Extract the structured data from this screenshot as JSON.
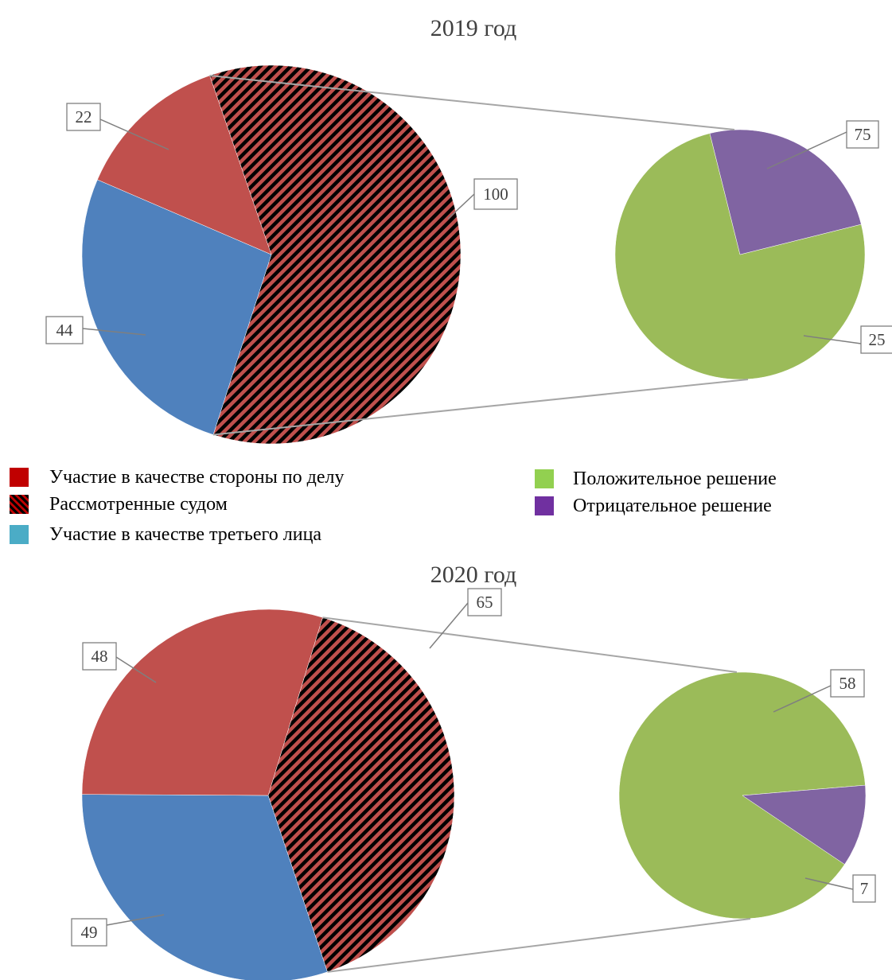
{
  "chart_data": [
    {
      "type": "bar-of-pie",
      "title": "2019 год",
      "main_pie": [
        {
          "name": "Рассмотренные судом",
          "value": 100,
          "label": "100"
        },
        {
          "name": "Участие в качестве третьего лица",
          "value": 44,
          "label": "44"
        },
        {
          "name": "Участие в качестве стороны по делу",
          "value": 22,
          "label": "22"
        }
      ],
      "secondary_pie": [
        {
          "name": "Положительное решение",
          "value": 75,
          "label": "75"
        },
        {
          "name": "Отрицательное решение",
          "value": 25,
          "label": "25"
        }
      ]
    },
    {
      "type": "bar-of-pie",
      "title": "2020 год",
      "main_pie": [
        {
          "name": "Рассмотренные судом",
          "value": 65,
          "label": "65"
        },
        {
          "name": "Участие в качестве третьего лица",
          "value": 49,
          "label": "49"
        },
        {
          "name": "Участие в качестве стороны по делу",
          "value": 48,
          "label": "48"
        }
      ],
      "secondary_pie": [
        {
          "name": "Положительное решение",
          "value": 58,
          "label": "58"
        },
        {
          "name": "Отрицательное решение",
          "value": 7,
          "label": "7"
        }
      ]
    }
  ],
  "legend": {
    "left": [
      {
        "label": "Участие в качестве стороны по делу",
        "swatch": "solid",
        "color": "#c00000"
      },
      {
        "label": "Рассмотренные судом",
        "swatch": "hatched",
        "color": "#c00000"
      },
      {
        "label": "Участие в качестве третьего лица",
        "swatch": "solid",
        "color": "#4bacc6"
      }
    ],
    "right": [
      {
        "label": "Положительное решение",
        "swatch": "solid",
        "color": "#92d050"
      },
      {
        "label": "Отрицательное решение",
        "swatch": "solid",
        "color": "#7030a0"
      }
    ]
  },
  "colors": {
    "side": "#c0504d",
    "reviewed_fill": "#c0504d",
    "reviewed_hatch": "#000000",
    "third": "#4f81bd",
    "positive": "#9bbb59",
    "negative": "#8064a2",
    "connector": "#a6a6a6",
    "label_border": "#7f7f7f"
  }
}
